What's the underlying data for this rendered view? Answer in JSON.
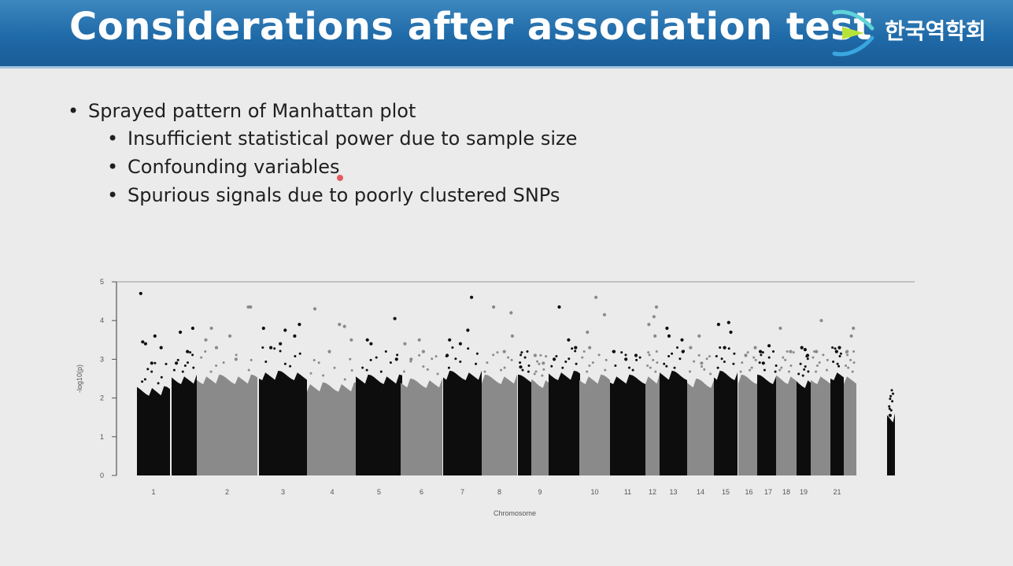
{
  "slide": {
    "title": "Considerations after association test",
    "org_name": "한국역학회",
    "logo_icon": "org-logo-icon",
    "header_color": "#1f6aa8",
    "bullets": [
      {
        "level": 1,
        "text": "Sprayed pattern of Manhattan plot"
      },
      {
        "level": 2,
        "text": "Insufficient statistical power due to sample size"
      },
      {
        "level": 2,
        "text": "Confounding variables"
      },
      {
        "level": 2,
        "text": "Spurious signals due to poorly clustered SNPs"
      }
    ]
  },
  "chart_data": {
    "type": "scatter",
    "subtype": "manhattan",
    "xlabel": "Chromosome",
    "ylabel": "-log10(p)",
    "ylim": [
      0,
      5
    ],
    "yticks": [
      0,
      1,
      2,
      3,
      4,
      5
    ],
    "colors": {
      "odd": "#0d0d0d",
      "even": "#8a8a8a"
    },
    "chromosomes": [
      {
        "label": "1",
        "color": "odd",
        "body_max": 2.3,
        "tops": [
          3.45,
          3.3,
          2.9,
          4.7,
          3.6,
          3.4
        ]
      },
      {
        "label": "",
        "color": "odd",
        "body_max": 2.6,
        "tops": [
          3.7,
          3.8,
          3.2,
          2.9
        ]
      },
      {
        "label": "2",
        "color": "even",
        "body_max": 2.6,
        "tops": [
          3.6,
          3.8,
          4.35,
          3.3,
          4.35,
          3.0,
          3.5
        ]
      },
      {
        "label": "3",
        "color": "odd",
        "body_max": 2.7,
        "tops": [
          3.6,
          3.4,
          3.8,
          3.75,
          3.3,
          3.9
        ]
      },
      {
        "label": "4",
        "color": "even",
        "body_max": 2.4,
        "tops": [
          3.5,
          3.9,
          4.3,
          3.85,
          3.2
        ]
      },
      {
        "label": "5",
        "color": "odd",
        "body_max": 2.6,
        "tops": [
          3.5,
          4.05,
          3.4,
          3.0
        ]
      },
      {
        "label": "6",
        "color": "even",
        "body_max": 2.5,
        "tops": [
          3.5,
          3.4,
          3.2,
          3.0
        ]
      },
      {
        "label": "7",
        "color": "odd",
        "body_max": 2.7,
        "tops": [
          3.75,
          3.5,
          4.6,
          3.4,
          3.1
        ]
      },
      {
        "label": "8",
        "color": "even",
        "body_max": 2.6,
        "tops": [
          4.2,
          4.35,
          3.6,
          3.2
        ]
      },
      {
        "label": "",
        "color": "odd",
        "body_max": 2.6,
        "tops": [
          2.8
        ]
      },
      {
        "label": "9",
        "color": "even",
        "body_max": 2.5,
        "tops": [
          3.1,
          2.9
        ]
      },
      {
        "label": "",
        "color": "odd",
        "body_max": 2.7,
        "tops": [
          4.35,
          3.3,
          3.5,
          3.0
        ]
      },
      {
        "label": "10",
        "color": "even",
        "body_max": 2.6,
        "tops": [
          4.6,
          3.7,
          4.15,
          3.3
        ]
      },
      {
        "label": "11",
        "color": "odd",
        "body_max": 2.6,
        "tops": [
          3.1,
          3.0,
          3.2
        ]
      },
      {
        "label": "12",
        "color": "even",
        "body_max": 2.6,
        "tops": [
          4.35,
          4.1,
          3.9,
          3.6
        ]
      },
      {
        "label": "13",
        "color": "odd",
        "body_max": 2.7,
        "tops": [
          3.8,
          3.5,
          3.6,
          3.2
        ]
      },
      {
        "label": "14",
        "color": "even",
        "body_max": 2.5,
        "tops": [
          3.6,
          3.3,
          2.9
        ]
      },
      {
        "label": "15",
        "color": "odd",
        "body_max": 2.7,
        "tops": [
          3.95,
          3.9,
          3.7,
          3.3
        ]
      },
      {
        "label": "16",
        "color": "even",
        "body_max": 2.6,
        "tops": [
          3.3,
          3.1
        ]
      },
      {
        "label": "17",
        "color": "odd",
        "body_max": 2.6,
        "tops": [
          3.2,
          3.35,
          2.9
        ]
      },
      {
        "label": "18",
        "color": "even",
        "body_max": 2.6,
        "tops": [
          3.8,
          3.2
        ]
      },
      {
        "label": "19",
        "color": "odd",
        "body_max": 2.5,
        "tops": [
          3.3,
          3.1,
          3.25
        ]
      },
      {
        "label": "",
        "color": "even",
        "body_max": 2.6,
        "tops": [
          4.0,
          3.2
        ]
      },
      {
        "label": "21",
        "color": "odd",
        "body_max": 2.7,
        "tops": [
          3.3,
          3.2
        ]
      },
      {
        "label": "",
        "color": "even",
        "body_max": 2.6,
        "tops": [
          3.8,
          3.6,
          3.2
        ]
      },
      {
        "label": "",
        "color": "odd",
        "body_max": 1.6,
        "tops": [
          1.55
        ]
      }
    ],
    "grid": false
  }
}
